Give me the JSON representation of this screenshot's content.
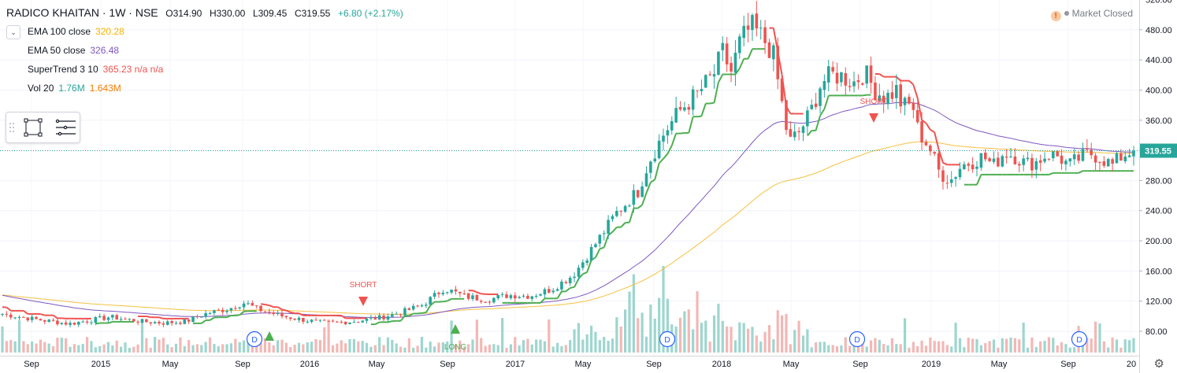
{
  "header": {
    "symbol": "RADICO KHAITAN · 1W · NSE",
    "open": "O314.90",
    "high": "H330.00",
    "low": "L309.45",
    "close": "C319.55",
    "change": "+6.80 (+2.17%)"
  },
  "indicators": [
    {
      "label": "EMA 100 close",
      "value": "320.28",
      "color": "#f5b400"
    },
    {
      "label": "EMA 50 close",
      "value": "326.48",
      "color": "#7e57c2"
    },
    {
      "label": "SuperTrend 3 10",
      "value": "365.23 n/a n/a",
      "color": "#ef5350"
    },
    {
      "label": "Vol 20",
      "value": "1.76M",
      "value2": "1.643M",
      "color": "#26a69a",
      "color2": "#f57c00"
    }
  ],
  "status": "Market Closed",
  "colors": {
    "up": "#26a69a",
    "down": "#ef5350",
    "vol_up": "#9dd6cf",
    "vol_down": "#f3b7b5",
    "ema100": "#f5c040",
    "ema50": "#7e57c2",
    "st_up": "#4caf50",
    "st_down": "#ef5350"
  },
  "chart_data": {
    "type": "candlestick",
    "last_price": "319.55",
    "y_axis": {
      "ticks": [
        "80.00",
        "120.00",
        "160.00",
        "200.00",
        "240.00",
        "280.00",
        "320.00",
        "360.00",
        "400.00",
        "440.00",
        "480.00",
        "520.00"
      ]
    },
    "x_axis": {
      "ticks": [
        "Sep",
        "2015",
        "May",
        "Sep",
        "2016",
        "May",
        "Sep",
        "2017",
        "May",
        "Sep",
        "2018",
        "May",
        "Sep",
        "2019",
        "May",
        "Sep",
        "20"
      ]
    },
    "signals": [
      {
        "label": "SHORT",
        "type": "short"
      },
      {
        "label": "SHORT",
        "type": "short"
      },
      {
        "label": "LONG",
        "type": "long"
      }
    ],
    "dividends": [
      "D",
      "D",
      "D",
      "D",
      "D"
    ]
  }
}
